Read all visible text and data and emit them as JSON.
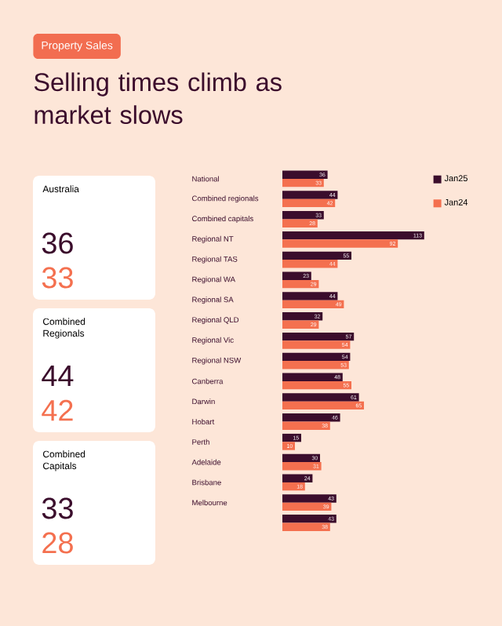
{
  "chart_data": [
    {
      "type": "other",
      "subtitle": "Property Sales",
      "title": "Selling times climb as market slows"
    },
    {
      "type": "bar",
      "orientation": "horizontal",
      "categories": [
        "National",
        "Combined regionals",
        "Combined capitals",
        "Regional NT",
        "Regional TAS",
        "Regional WA",
        "Regional SA",
        "Regional QLD",
        "Regional Vic",
        "Regional NSW",
        "Canberra",
        "Darwin",
        "Hobart",
        "Perth",
        "Adelaide",
        "Brisbane",
        "Melbourne",
        null
      ],
      "series": [
        {
          "name": "Jan25",
          "color": "#3b0d2c",
          "values": [
            36,
            44,
            33,
            113,
            55,
            23,
            44,
            32,
            57,
            54,
            48,
            61,
            46,
            15,
            30,
            24,
            43,
            43
          ]
        },
        {
          "name": "Jan24",
          "color": "#f4704f",
          "values": [
            33,
            42,
            28,
            92,
            44,
            29,
            49,
            29,
            54,
            53,
            55,
            65,
            38,
            10,
            31,
            18,
            39,
            38
          ]
        }
      ],
      "data_labels": true,
      "legend": "top right",
      "tick_labels": "y"
    },
    {
      "type": "other",
      "annotations": [
        "Australia",
        "36",
        "33",
        "Combined Regionals",
        "44",
        "42",
        "Combined Capitals",
        "33",
        "28"
      ]
    }
  ]
}
